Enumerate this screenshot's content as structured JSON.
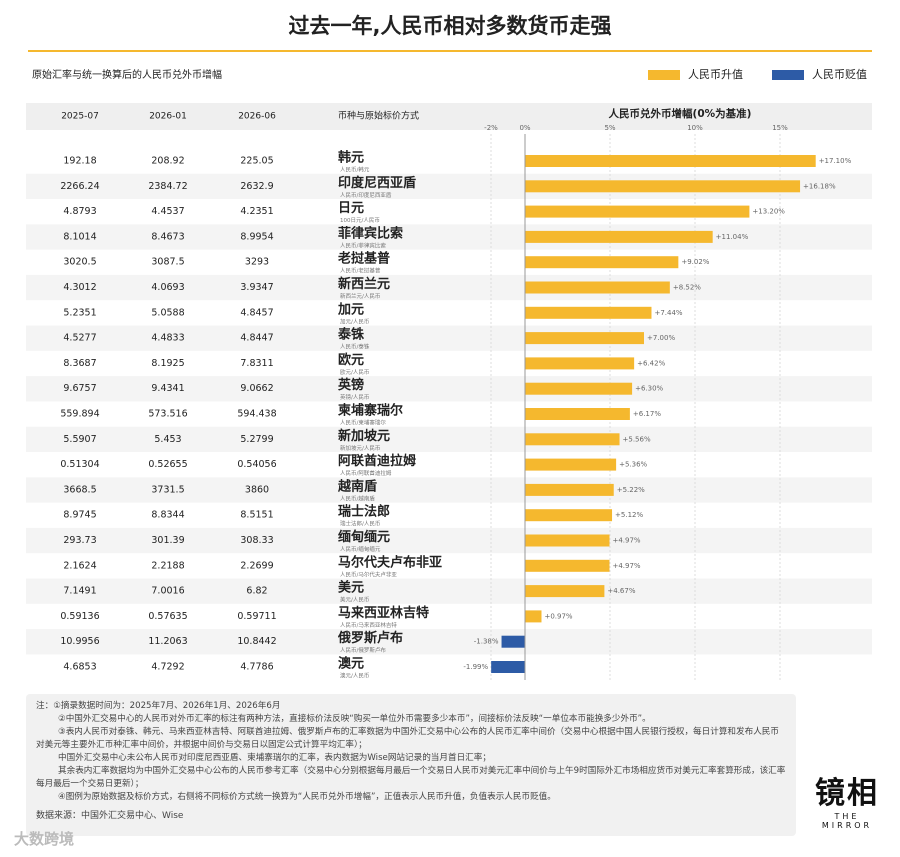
{
  "title": "过去一年,人民币相对多数货币走强",
  "subtitle": "原始汇率与统一换算后的人民币兑外币增幅",
  "table": {
    "columns": [
      "2025-07",
      "2026-01",
      "2026-06",
      "币种与原始标价方式"
    ],
    "rows": [
      [
        "192.18",
        "208.92",
        "225.05"
      ],
      [
        "2266.24",
        "2384.72",
        "2632.9"
      ],
      [
        "4.8793",
        "4.4537",
        "4.2351"
      ],
      [
        "8.1014",
        "8.4673",
        "8.9954"
      ],
      [
        "3020.5",
        "3087.5",
        "3293"
      ],
      [
        "4.3012",
        "4.0693",
        "3.9347"
      ],
      [
        "5.2351",
        "5.0588",
        "4.8457"
      ],
      [
        "4.5277",
        "4.4833",
        "4.8447"
      ],
      [
        "8.3687",
        "8.1925",
        "7.8311"
      ],
      [
        "9.6757",
        "9.4341",
        "9.0662"
      ],
      [
        "559.894",
        "573.516",
        "594.438"
      ],
      [
        "5.5907",
        "5.453",
        "5.2799"
      ],
      [
        "0.51304",
        "0.52655",
        "0.54056"
      ],
      [
        "3668.5",
        "3731.5",
        "3860"
      ],
      [
        "8.9745",
        "8.8344",
        "8.5151"
      ],
      [
        "293.73",
        "301.39",
        "308.33"
      ],
      [
        "2.1624",
        "2.2188",
        "2.2699"
      ],
      [
        "7.1491",
        "7.0016",
        "6.82"
      ],
      [
        "0.59136",
        "0.57635",
        "0.59711"
      ],
      [
        "10.9956",
        "11.2063",
        "10.8442"
      ],
      [
        "4.6853",
        "4.7292",
        "4.7786"
      ]
    ]
  },
  "chart_data": {
    "type": "hbar",
    "title": "人民币兑外币增幅(0%为基准)",
    "categories": [
      "韩元",
      "印度尼西亚盾",
      "日元",
      "菲律宾比索",
      "老挝基普",
      "新西兰元",
      "加元",
      "泰铢",
      "欧元",
      "英镑",
      "柬埔寨瑞尔",
      "新加坡元",
      "阿联酋迪拉姆",
      "越南盾",
      "瑞士法郎",
      "缅甸缅元",
      "马尔代夫卢布非亚",
      "美元",
      "马来西亚林吉特",
      "俄罗斯卢布",
      "澳元"
    ],
    "sublabels": [
      "人民币/韩元",
      "人民币/印度尼西亚盾",
      "100日元/人民币",
      "人民币/菲律宾比索",
      "人民币/老挝基普",
      "新西兰元/人民币",
      "加元/人民币",
      "人民币/泰铢",
      "欧元/人民币",
      "英镑/人民币",
      "人民币/柬埔寨瑞尔",
      "新加坡元/人民币",
      "人民币/阿联酋迪拉姆",
      "人民币/越南盾",
      "瑞士法郎/人民币",
      "人民币/缅甸缅元",
      "人民币/马尔代夫卢非亚",
      "美元/人民币",
      "人民币/马来西亚林吉特",
      "人民币/俄罗斯卢布",
      "澳元/人民币"
    ],
    "values": [
      17.1,
      16.18,
      13.2,
      11.04,
      9.02,
      8.52,
      7.44,
      7.0,
      6.42,
      6.3,
      6.17,
      5.56,
      5.36,
      5.22,
      5.12,
      4.97,
      4.97,
      4.67,
      0.97,
      -1.38,
      -1.99
    ],
    "value_labels": [
      "+17.10%",
      "+16.18%",
      "+13.20%",
      "+11.04%",
      "+9.02%",
      "+8.52%",
      "+7.44%",
      "+7.00%",
      "+6.42%",
      "+6.30%",
      "+6.17%",
      "+5.56%",
      "+5.36%",
      "+5.22%",
      "+5.12%",
      "+4.97%",
      "+4.97%",
      "+4.67%",
      "+0.97%",
      "-1.38%",
      "-1.99%"
    ],
    "xlim": [
      -2,
      20
    ],
    "xticks": [
      {
        "value": -2,
        "label": "-2%"
      },
      {
        "value": 0,
        "label": "0%"
      },
      {
        "value": 5,
        "label": "5%"
      },
      {
        "value": 10,
        "label": "10%"
      },
      {
        "value": 15,
        "label": "15%"
      }
    ],
    "legend": [
      {
        "name": "人民币升值",
        "color": "#f5b82e"
      },
      {
        "name": "人民币贬值",
        "color": "#2d5ba6"
      }
    ],
    "grid": true
  },
  "notes": [
    "注：①摘录数据时间为：2025年7月、2026年1月、2026年6月",
    "②中国外汇交易中心的人民币对外币汇率的标注有两种方法，直接标价法反映“购买一单位外币需要多少本币”，间接标价法反映“一单位本币能换多少外币”。",
    "③表内人民币对泰铢、韩元、马来西亚林吉特、阿联酋迪拉姆、俄罗斯卢布的汇率数据为中国外汇交易中心公布的人民币汇率中间价（交易中心根据中国人民银行授权，每日计算和发布人民币对美元等主要外汇币种汇率中间价，并根据中间价与交易日以固定公式计算平均汇率）；",
    "中国外汇交易中心未公布人民币对印度尼西亚盾、柬埔寨瑞尔的汇率，表内数据为Wise网站记录的当月首日汇率；",
    "其余表内汇率数据均为中国外汇交易中心公布的人民币参考汇率（交易中心分别根据每月最后一个交易日人民币对美元汇率中间价与上午9时国际外汇市场相应货币对美元汇率套算形成，该汇率每月最后一个交易日更新）；",
    "④图例为原始数据及标价方式，右侧将不同标价方式统一换算为“人民币兑外币增幅”，正值表示人民币升值，负值表示人民币贬值。"
  ],
  "source": "数据来源：中国外汇交易中心、Wise",
  "watermark": {
    "name": "镜相",
    "english": "THE MIRROR"
  },
  "logo": "大数跨境"
}
